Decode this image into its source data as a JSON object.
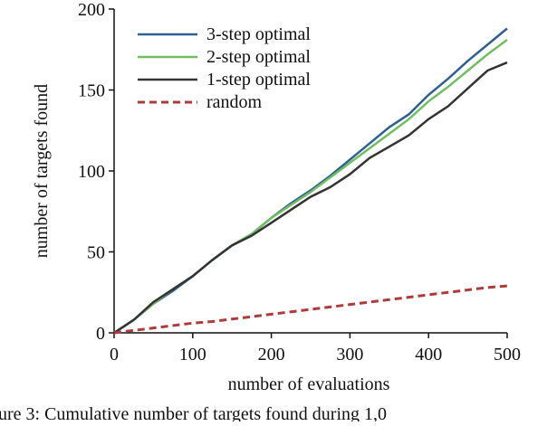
{
  "chart_data": {
    "type": "line",
    "x_label": "number of evaluations",
    "y_label": "number of targets found",
    "x": [
      0,
      25,
      50,
      75,
      100,
      125,
      150,
      175,
      200,
      225,
      250,
      275,
      300,
      325,
      350,
      375,
      400,
      425,
      450,
      475,
      500
    ],
    "series": [
      {
        "name": "3-step optimal",
        "color": "#2e5f94",
        "dash": false,
        "values": [
          0,
          8,
          18,
          26,
          35,
          45,
          54,
          61,
          71,
          80,
          88,
          97,
          107,
          117,
          127,
          135,
          147,
          157,
          168,
          178,
          188
        ]
      },
      {
        "name": "2-step optimal",
        "color": "#6fbf5f",
        "dash": false,
        "values": [
          0,
          8,
          18,
          27,
          35,
          45,
          54,
          61,
          71,
          79,
          87,
          96,
          105,
          114,
          123,
          132,
          143,
          152,
          162,
          172,
          181
        ]
      },
      {
        "name": "1-step optimal",
        "color": "#333333",
        "dash": false,
        "values": [
          0,
          8,
          19,
          27,
          35,
          45,
          54,
          60,
          68,
          76,
          84,
          90,
          98,
          108,
          115,
          122,
          132,
          140,
          151,
          162,
          167
        ]
      },
      {
        "name": "random",
        "color": "#b03a3a",
        "dash": true,
        "values": [
          0,
          1.5,
          3,
          4.5,
          6,
          7,
          8.5,
          10,
          11.5,
          13,
          14.5,
          16,
          17.5,
          19,
          20.5,
          22,
          23.5,
          25,
          26.5,
          28,
          29
        ]
      }
    ],
    "xlim": [
      0,
      500
    ],
    "xticks": [
      0,
      100,
      200,
      300,
      400,
      500
    ],
    "ylim": [
      0,
      200
    ],
    "yticks": [
      0,
      50,
      100,
      150,
      200
    ],
    "legend": "upper left",
    "caption": "ure 3: Cumulative number of targets found during 1,0"
  }
}
